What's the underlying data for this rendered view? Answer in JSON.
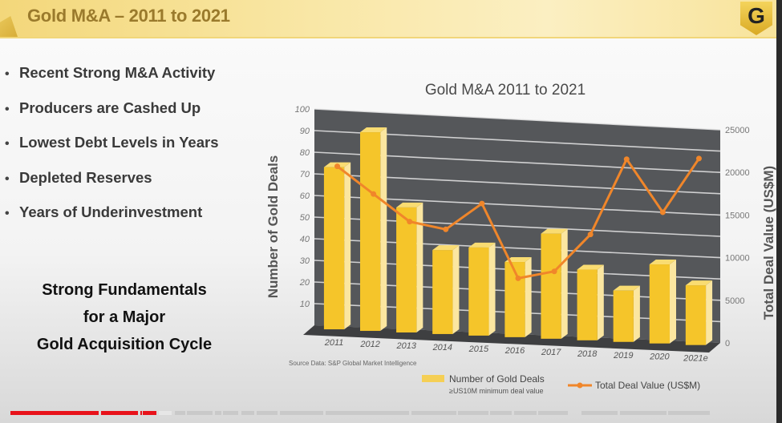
{
  "header": {
    "title": "Gold M&A – 2011 to 2021",
    "logo_letter": "G"
  },
  "bullets": [
    "Recent Strong M&A Activity",
    "Producers are Cashed Up",
    "Lowest Debt Levels in Years",
    "Depleted Reserves",
    "Years of Underinvestment"
  ],
  "tagline": [
    "Strong Fundamentals",
    "for a Major",
    "Gold Acquisition Cycle"
  ],
  "colors": {
    "bar_front": "#f5c52a",
    "bar_side": "#fbe6a0",
    "line": "#f0862a",
    "wall": "#55575a",
    "progress_played": "#e8121a"
  },
  "video_progress": {
    "played_percent": 19
  },
  "chart_data": {
    "type": "bar",
    "title": "Gold M&A 2011 to 2021",
    "categories": [
      "2011",
      "2012",
      "2013",
      "2014",
      "2015",
      "2016",
      "2017",
      "2018",
      "2019",
      "2020",
      "2021e"
    ],
    "ylabel": "Number of Gold Deals",
    "y2label": "Total Deal Value (US$M)",
    "ylim": [
      0,
      100
    ],
    "y2lim": [
      0,
      25000
    ],
    "yticks": [
      "10",
      "20",
      "30",
      "40",
      "50",
      "60",
      "70",
      "80",
      "90",
      "100"
    ],
    "y2ticks": [
      "0",
      "5000",
      "10000",
      "15000",
      "20000",
      "25000"
    ],
    "grid": true,
    "series": [
      {
        "name": "Number of Gold Deals",
        "type": "bar",
        "axis": "left",
        "values": [
          75,
          92,
          58,
          39,
          41,
          35,
          49,
          33,
          24,
          37,
          28
        ]
      },
      {
        "name": "Total Deal Value (US$M)",
        "type": "line",
        "axis": "right",
        "values": [
          18500,
          15500,
          12500,
          11800,
          15000,
          6500,
          7500,
          12000,
          21000,
          15000,
          21500
        ]
      }
    ],
    "legend": {
      "position": "bottom",
      "bar_label": "Number of Gold Deals",
      "bar_sublabel": "≥US10M minimum deal value",
      "line_label": "Total Deal Value (US$M)"
    },
    "source": "Source Data: S&P Global Market Intelligence"
  }
}
